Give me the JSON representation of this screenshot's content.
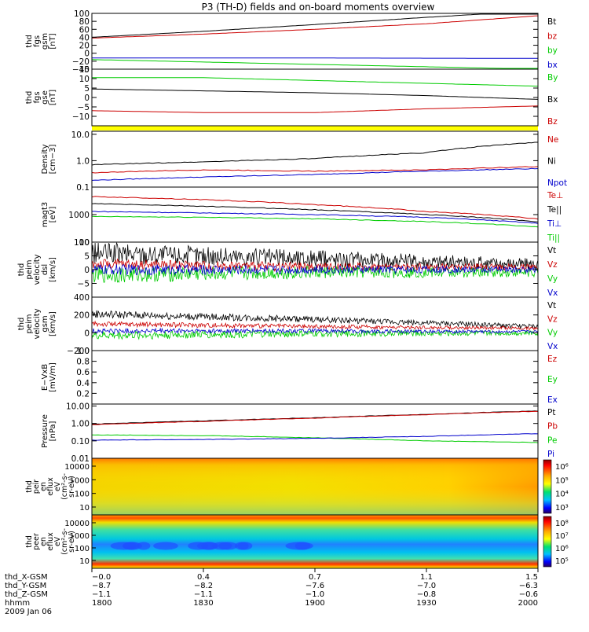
{
  "title": "P3 (TH-D) fields and on-board moments overview",
  "chart_data": [
    {
      "type": "line",
      "panel": "fgs_gsm",
      "ylabel_lines": [
        "thd",
        "fgs",
        "gsm",
        "[nT]"
      ],
      "ylim": [
        -40,
        100
      ],
      "yticks": [
        100,
        80,
        60,
        40,
        20,
        0,
        -20,
        -40
      ],
      "ytick_labels": [
        "100",
        "80",
        "60",
        "40",
        "20",
        "0",
        "−20",
        "−40"
      ],
      "series": [
        {
          "name": "Bt",
          "color": "#000000",
          "x": [
            0,
            0.25,
            0.5,
            0.75,
            0.9,
            1.0
          ],
          "y": [
            40,
            55,
            72,
            90,
            100,
            100
          ]
        },
        {
          "name": "bz",
          "color": "#cc0000",
          "x": [
            0,
            0.25,
            0.5,
            0.75,
            1.0
          ],
          "y": [
            38,
            48,
            60,
            74,
            94
          ]
        },
        {
          "name": "by",
          "color": "#00cc00",
          "x": [
            0,
            0.25,
            0.5,
            0.75,
            1.0
          ],
          "y": [
            -16,
            -22,
            -28,
            -34,
            -40
          ]
        },
        {
          "name": "bx",
          "color": "#0000cc",
          "x": [
            0,
            0.5,
            1.0
          ],
          "y": [
            -12,
            -12,
            -13
          ]
        }
      ]
    },
    {
      "type": "line",
      "panel": "fgs_gse",
      "ylabel_lines": [
        "thd",
        "fgs",
        "gse",
        "[nT]"
      ],
      "ylim": [
        -15,
        15
      ],
      "yticks": [
        15,
        10,
        5,
        0,
        -5,
        -10
      ],
      "ytick_labels": [
        "15",
        "10",
        "5",
        "0",
        "−5",
        "−10"
      ],
      "series": [
        {
          "name": "By",
          "color": "#00cc00",
          "x": [
            0,
            0.25,
            0.5,
            0.75,
            1.0
          ],
          "y": [
            10.5,
            10.5,
            9,
            7.5,
            6
          ]
        },
        {
          "name": "Bx",
          "color": "#000000",
          "x": [
            0,
            0.25,
            0.5,
            0.75,
            1.0
          ],
          "y": [
            4.5,
            3.5,
            2.5,
            1,
            -1
          ]
        },
        {
          "name": "Bz",
          "color": "#cc0000",
          "x": [
            0,
            0.25,
            0.5,
            0.75,
            1.0
          ],
          "y": [
            -7,
            -8,
            -8,
            -6,
            -4.5
          ]
        }
      ]
    },
    {
      "type": "line",
      "panel": "density",
      "ylabel_lines": [
        "Density",
        "[cm−3]"
      ],
      "log": true,
      "ylim": [
        0.1,
        13
      ],
      "yticks": [
        10,
        1,
        0.1
      ],
      "ytick_labels": [
        "10.0",
        "1.0",
        "0.1"
      ],
      "series": [
        {
          "name": "Ne",
          "color": "#cc0000",
          "x": [
            0,
            0.25,
            0.5,
            0.75,
            1.0
          ],
          "y": [
            0.35,
            0.45,
            0.4,
            0.45,
            0.6
          ]
        },
        {
          "name": "Ni",
          "color": "#000000",
          "x": [
            0,
            0.25,
            0.5,
            0.75,
            1.0
          ],
          "y": [
            0.7,
            0.9,
            1.2,
            2.0,
            5.0
          ]
        },
        {
          "name": "Npot",
          "color": "#0000cc",
          "x": [
            0,
            0.5,
            1.0
          ],
          "y": [
            0.18,
            0.3,
            0.5
          ]
        }
      ]
    },
    {
      "type": "line",
      "panel": "temperature",
      "ylabel_lines": [
        "magt3",
        "[eV]"
      ],
      "log": true,
      "ylim": [
        100,
        10000
      ],
      "yticks": [
        1000,
        100
      ],
      "ytick_labels": [
        "1000",
        "100"
      ],
      "series": [
        {
          "name": "Te⊥",
          "color": "#cc0000",
          "x": [
            0,
            0.25,
            0.5,
            0.75,
            1.0
          ],
          "y": [
            4500,
            3500,
            2300,
            1300,
            700
          ]
        },
        {
          "name": "Te||",
          "color": "#000000",
          "x": [
            0,
            0.25,
            0.5,
            0.75,
            1.0
          ],
          "y": [
            2500,
            2000,
            1500,
            1000,
            550
          ]
        },
        {
          "name": "Ti⊥",
          "color": "#0000cc",
          "x": [
            0,
            0.25,
            0.5,
            0.75,
            1.0
          ],
          "y": [
            1300,
            1150,
            1000,
            800,
            480
          ]
        },
        {
          "name": "Ti||",
          "color": "#00cc00",
          "x": [
            0,
            0.25,
            0.5,
            0.75,
            1.0
          ],
          "y": [
            850,
            800,
            700,
            560,
            360
          ]
        }
      ]
    },
    {
      "type": "line",
      "panel": "velocity_dsl",
      "ylabel_lines": [
        "thd",
        "peim",
        "velocity",
        "dsl",
        "[km/s]"
      ],
      "ylim": [
        -10,
        10
      ],
      "yticks": [
        10,
        5,
        0,
        -5
      ],
      "ytick_labels": [
        "10",
        "5",
        "0",
        "−5"
      ],
      "series": [
        {
          "name": "Vt",
          "color": "#000000",
          "x": [
            0,
            0.5,
            1.0
          ],
          "y": [
            6,
            4,
            2
          ],
          "noise": 4
        },
        {
          "name": "Vz",
          "color": "#cc0000",
          "x": [
            0,
            0.5,
            1.0
          ],
          "y": [
            2,
            1,
            1
          ],
          "noise": 2
        },
        {
          "name": "Vy",
          "color": "#00cc00",
          "x": [
            0,
            0.5,
            1.0
          ],
          "y": [
            -2,
            -1,
            -1
          ],
          "noise": 3
        },
        {
          "name": "Vx",
          "color": "#0000cc",
          "x": [
            0,
            0.5,
            1.0
          ],
          "y": [
            0,
            0,
            0
          ],
          "noise": 2
        }
      ]
    },
    {
      "type": "line",
      "panel": "velocity_gsm",
      "ylabel_lines": [
        "thd",
        "peim",
        "velocity",
        "gsm",
        "[km/s]"
      ],
      "ylim": [
        -200,
        400
      ],
      "yticks": [
        400,
        200,
        0,
        -200
      ],
      "ytick_labels": [
        "400",
        "200",
        "0",
        "−200"
      ],
      "series": [
        {
          "name": "Vt",
          "color": "#000000",
          "x": [
            0,
            0.5,
            1.0
          ],
          "y": [
            210,
            150,
            70
          ],
          "noise": 45
        },
        {
          "name": "Vz",
          "color": "#cc0000",
          "x": [
            0,
            0.5,
            1.0
          ],
          "y": [
            100,
            70,
            50
          ],
          "noise": 30
        },
        {
          "name": "Vy",
          "color": "#00cc00",
          "x": [
            0,
            0.5,
            1.0
          ],
          "y": [
            -30,
            -10,
            0
          ],
          "noise": 50
        },
        {
          "name": "Vx",
          "color": "#0000cc",
          "x": [
            0,
            0.5,
            1.0
          ],
          "y": [
            20,
            20,
            10
          ],
          "noise": 30
        }
      ]
    },
    {
      "type": "line",
      "panel": "efield",
      "ylabel_lines": [
        "E−VxB",
        "[mV/m]"
      ],
      "ylim": [
        0,
        1
      ],
      "yticks": [
        1,
        0.8,
        0.6,
        0.4,
        0.2
      ],
      "ytick_labels": [
        "1.0",
        "0.8",
        "0.6",
        "0.4",
        "0.2"
      ],
      "series": [
        {
          "name": "Ez",
          "color": "#cc0000",
          "x": [],
          "y": []
        },
        {
          "name": "Ey",
          "color": "#00cc00",
          "x": [],
          "y": []
        },
        {
          "name": "Ex",
          "color": "#0000cc",
          "x": [],
          "y": []
        }
      ]
    },
    {
      "type": "line",
      "panel": "pressure",
      "ylabel_lines": [
        "Pressure",
        "[nPa]"
      ],
      "log": true,
      "ylim": [
        0.01,
        13
      ],
      "yticks": [
        10,
        1,
        0.1,
        0.01
      ],
      "ytick_labels": [
        "10.00",
        "1.00",
        "0.10",
        "0.01"
      ],
      "series": [
        {
          "name": "Pt",
          "color": "#000000",
          "x": [
            0,
            0.25,
            0.5,
            0.75,
            1.0
          ],
          "y": [
            0.9,
            1.4,
            2.1,
            3.3,
            5.2
          ]
        },
        {
          "name": "Pb",
          "color": "#cc0000",
          "x": [
            0,
            0.25,
            0.5,
            0.75,
            1.0
          ],
          "y": [
            0.85,
            1.3,
            2.0,
            3.2,
            5.0
          ]
        },
        {
          "name": "Pe",
          "color": "#00cc00",
          "x": [
            0,
            0.25,
            0.5,
            0.75,
            1.0
          ],
          "y": [
            0.22,
            0.2,
            0.15,
            0.1,
            0.08
          ]
        },
        {
          "name": "Pi",
          "color": "#0000cc",
          "x": [
            0,
            0.25,
            0.5,
            0.75,
            1.0
          ],
          "y": [
            0.11,
            0.12,
            0.14,
            0.18,
            0.26
          ]
        }
      ]
    },
    {
      "type": "heatmap",
      "panel": "ion_efl",
      "ylabel_lines": [
        "thd",
        "peir",
        "en",
        "eflux",
        "eV",
        "(cm²-s-",
        "sr-eV)"
      ],
      "yticks": [
        "10000",
        "1000",
        "100",
        "10"
      ],
      "colorbar_labels": [
        "10⁶",
        "10⁵",
        "10⁴",
        "10³"
      ]
    },
    {
      "type": "heatmap",
      "panel": "electron_efl",
      "ylabel_lines": [
        "thd",
        "peer",
        "en",
        "eflux",
        "eV",
        "(cm²-s-",
        "sr-eV)"
      ],
      "yticks": [
        "10000",
        "1000",
        "100",
        "10"
      ],
      "colorbar_labels": [
        "10⁸",
        "10⁷",
        "10⁶",
        "10⁵"
      ]
    }
  ],
  "xaxis": {
    "row_labels": [
      "thd_X-GSM",
      "thd_Y-GSM",
      "thd_Z-GSM",
      "hhmm",
      "2009 Jan 06"
    ],
    "columns": [
      {
        "x": 0.0,
        "values": [
          "−0.0",
          "−8.7",
          "−1.1",
          "1800"
        ]
      },
      {
        "x": 0.25,
        "values": [
          "0.4",
          "−8.2",
          "−1.1",
          "1830"
        ]
      },
      {
        "x": 0.5,
        "values": [
          "0.7",
          "−7.6",
          "−1.0",
          "1900"
        ]
      },
      {
        "x": 0.75,
        "values": [
          "1.1",
          "−7.0",
          "−0.8",
          "1930"
        ]
      },
      {
        "x": 1.0,
        "values": [
          "1.5",
          "−6.3",
          "−0.6",
          "2000"
        ]
      }
    ]
  }
}
